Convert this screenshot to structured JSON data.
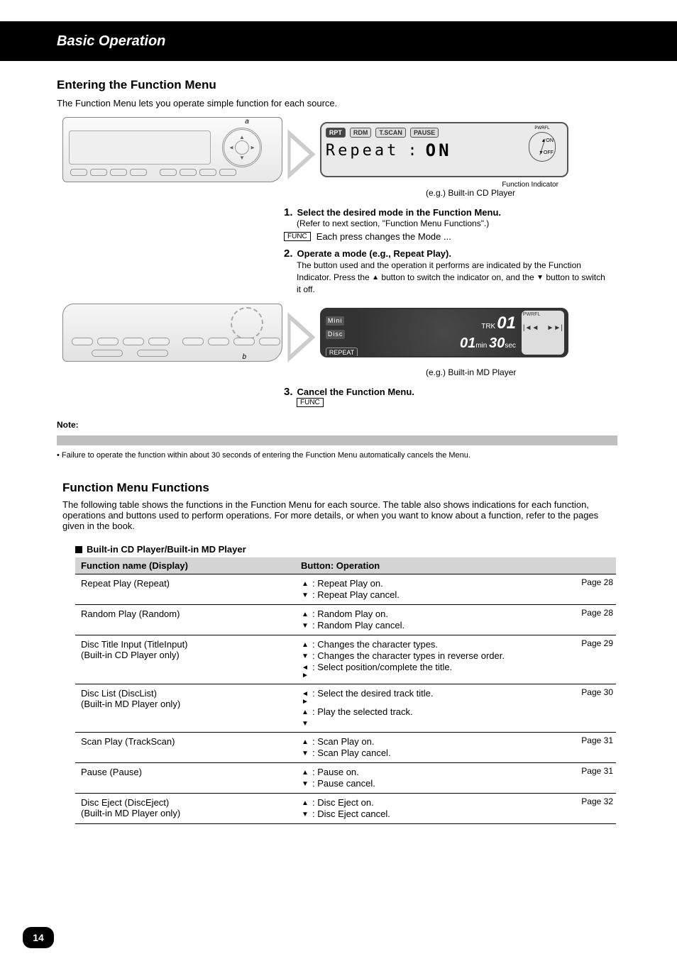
{
  "header": "Basic Operation",
  "section1": {
    "title": "Entering the Function Menu",
    "sub": "The Function Menu lets you operate simple function for each source."
  },
  "device": {
    "callout_a": "a",
    "callout_b": "b"
  },
  "display1": {
    "tabs": {
      "rpt": "RPT",
      "rdm": "RDM",
      "tscan": "T.SCAN",
      "pause": "PAUSE"
    },
    "readout_label": "Repeat",
    "readout_sep": ":",
    "readout_value": "ON",
    "pwrfl": "PWRFL",
    "on": "ON",
    "off": "OFF",
    "caption": "(e.g.) Built-in CD Player"
  },
  "steps": {
    "step1_lead": "1.",
    "step1_text_a": "Select the desired mode in the Function Menu.",
    "step1_text_b": "(Refer to next section, \"Function Menu Functions\".)",
    "step1_each": "Each press changes the Mode ...",
    "step2_lead": "2.",
    "step2_text": "Operate a mode (e.g., Repeat Play).",
    "step2_a": "The button used and the operation it performs are indicated by the Function Indicator. Press the ",
    "step2_b": " button to switch the indicator on, and the ",
    "step2_c": " button to switch it off.",
    "step3_lead": "3.",
    "step3_text": "Cancel the Function Menu."
  },
  "display2": {
    "mini": "Mini",
    "disc": "Disc",
    "repeat": "REPEAT",
    "trk_label": "TRK",
    "trk_num": "01",
    "time_min": "01",
    "min_lbl": "min",
    "time_sec": "30",
    "sec_lbl": "sec",
    "pwrfl": "PWRFL",
    "skip_back": "|◄◄",
    "skip_fwd": "►►|",
    "caption": "(e.g.) Built-in MD Player"
  },
  "note": {
    "label": "Note:",
    "bullet": "•",
    "text": "Failure to operate the function within about 30 seconds of entering the Function Menu automatically cancels the Menu."
  },
  "section2": {
    "title": "Function Menu Functions",
    "sub": "The following table shows the functions in the Function Menu for each source. The table also shows indications for each function, operations and buttons used to perform operations. For more details, or when you want to know about a function, refer to the pages given in the book.",
    "menu_intro": "Built-in CD Player/Built-in MD Player"
  },
  "table": {
    "head_left": "Function name (Display)",
    "head_right": "Button: Operation",
    "rows": [
      {
        "name": "Repeat Play (Repeat)",
        "ops": [
          {
            "tri": "▲",
            "text": ": Repeat Play on."
          },
          {
            "tri": "▼",
            "text": ": Repeat Play cancel."
          }
        ],
        "page": "Page 28"
      },
      {
        "name": "Random Play (Random)",
        "ops": [
          {
            "tri": "▲",
            "text": ": Random Play on."
          },
          {
            "tri": "▼",
            "text": ": Random Play cancel."
          }
        ],
        "page": "Page 28"
      },
      {
        "name": "Disc Title Input (TitleInput)\n(Built-in CD Player only)",
        "ops": [
          {
            "tri": "▲",
            "text": ": Changes the character types."
          },
          {
            "tri": "▼",
            "text": ": Changes the character types in reverse order."
          },
          {
            "tri": "◄ ►",
            "text": ": Select position/complete the title."
          }
        ],
        "page": "Page 29"
      },
      {
        "name": "Disc List (DiscList)\n(Built-in MD Player only)",
        "ops": [
          {
            "tri": "◄ ►",
            "text": ": Select the desired track title."
          },
          {
            "tri": "▲",
            "text": ": Play the selected track."
          },
          {
            "tri": "▼",
            "text": ""
          }
        ],
        "page": "Page 30"
      },
      {
        "name": "Scan Play (TrackScan)",
        "ops": [
          {
            "tri": "▲",
            "text": ": Scan Play on."
          },
          {
            "tri": "▼",
            "text": ": Scan Play cancel."
          }
        ],
        "page": "Page 31"
      },
      {
        "name": "Pause (Pause)",
        "ops": [
          {
            "tri": "▲",
            "text": ": Pause on."
          },
          {
            "tri": "▼",
            "text": ": Pause cancel."
          }
        ],
        "page": "Page 31"
      },
      {
        "name": "Disc Eject (DiscEject)\n(Built-in MD Player only)",
        "ops": [
          {
            "tri": "▲",
            "text": ": Disc Eject on."
          },
          {
            "tri": "▼",
            "text": ": Disc Eject cancel."
          }
        ],
        "page": "Page 32"
      }
    ]
  },
  "page_number": "14"
}
